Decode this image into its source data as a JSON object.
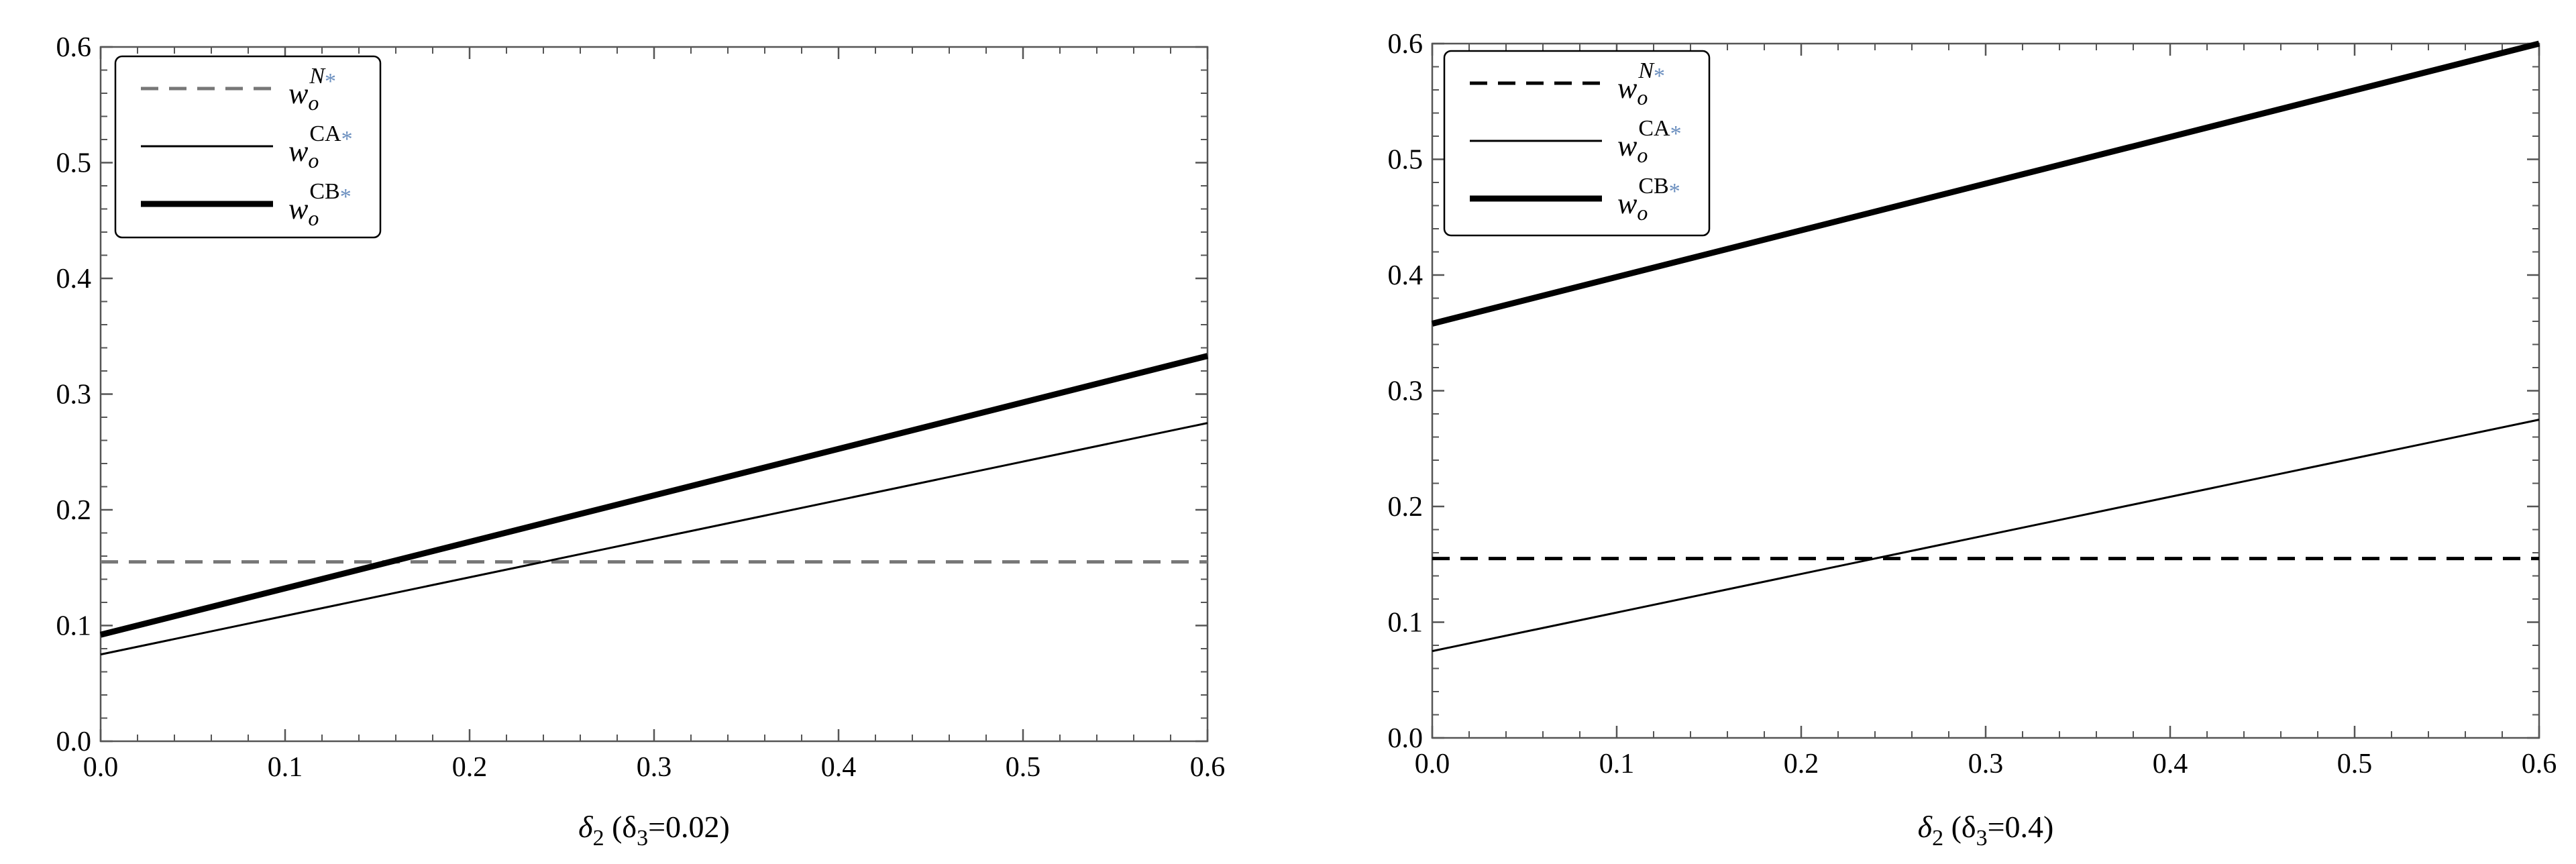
{
  "chart_data": [
    {
      "type": "line",
      "x_label": {
        "main": "δ",
        "sub": "2",
        "rest": " (δ",
        "sub2": "3",
        "tail": "=0.02)"
      },
      "xlim": [
        0,
        0.6
      ],
      "ylim": [
        0,
        0.6
      ],
      "x_ticks": [
        "0.0",
        "0.1",
        "0.2",
        "0.3",
        "0.4",
        "0.5",
        "0.6"
      ],
      "y_ticks": [
        "0.0",
        "0.1",
        "0.2",
        "0.3",
        "0.4",
        "0.5",
        "0.6"
      ],
      "legend_position": "top-left",
      "series": [
        {
          "key": "N",
          "label_main": "w",
          "label_sub": "o",
          "label_sup": "N",
          "label_star": "*",
          "style": "dashed",
          "color": "#777777",
          "points": [
            [
              0,
              0.155
            ],
            [
              0.6,
              0.155
            ]
          ]
        },
        {
          "key": "CA",
          "label_main": "w",
          "label_sub": "o",
          "label_sup": "CA",
          "label_star": "*",
          "style": "thin",
          "color": "#000000",
          "points": [
            [
              0,
              0.075
            ],
            [
              0.6,
              0.275
            ]
          ]
        },
        {
          "key": "CB",
          "label_main": "w",
          "label_sub": "o",
          "label_sup": "CB",
          "label_star": "*",
          "style": "thick",
          "color": "#000000",
          "points": [
            [
              0,
              0.092
            ],
            [
              0.6,
              0.333
            ]
          ]
        }
      ]
    },
    {
      "type": "line",
      "x_label": {
        "main": "δ",
        "sub": "2",
        "rest": " (δ",
        "sub2": "3",
        "tail": "=0.4)"
      },
      "xlim": [
        0,
        0.6
      ],
      "ylim": [
        0,
        0.6
      ],
      "x_ticks": [
        "0.0",
        "0.1",
        "0.2",
        "0.3",
        "0.4",
        "0.5",
        "0.6"
      ],
      "y_ticks": [
        "0.0",
        "0.1",
        "0.2",
        "0.3",
        "0.4",
        "0.5",
        "0.6"
      ],
      "legend_position": "top-left",
      "series": [
        {
          "key": "N",
          "label_main": "w",
          "label_sub": "o",
          "label_sup": "N",
          "label_star": "*",
          "style": "dashed",
          "color": "#000000",
          "points": [
            [
              0,
              0.155
            ],
            [
              0.6,
              0.155
            ]
          ]
        },
        {
          "key": "CA",
          "label_main": "w",
          "label_sub": "o",
          "label_sup": "CA",
          "label_star": "*",
          "style": "thin",
          "color": "#000000",
          "points": [
            [
              0,
              0.075
            ],
            [
              0.6,
              0.275
            ]
          ]
        },
        {
          "key": "CB",
          "label_main": "w",
          "label_sub": "o",
          "label_sup": "CB",
          "label_star": "*",
          "style": "thick",
          "color": "#000000",
          "points": [
            [
              0,
              0.358
            ],
            [
              0.6,
              0.6
            ]
          ]
        }
      ]
    }
  ]
}
